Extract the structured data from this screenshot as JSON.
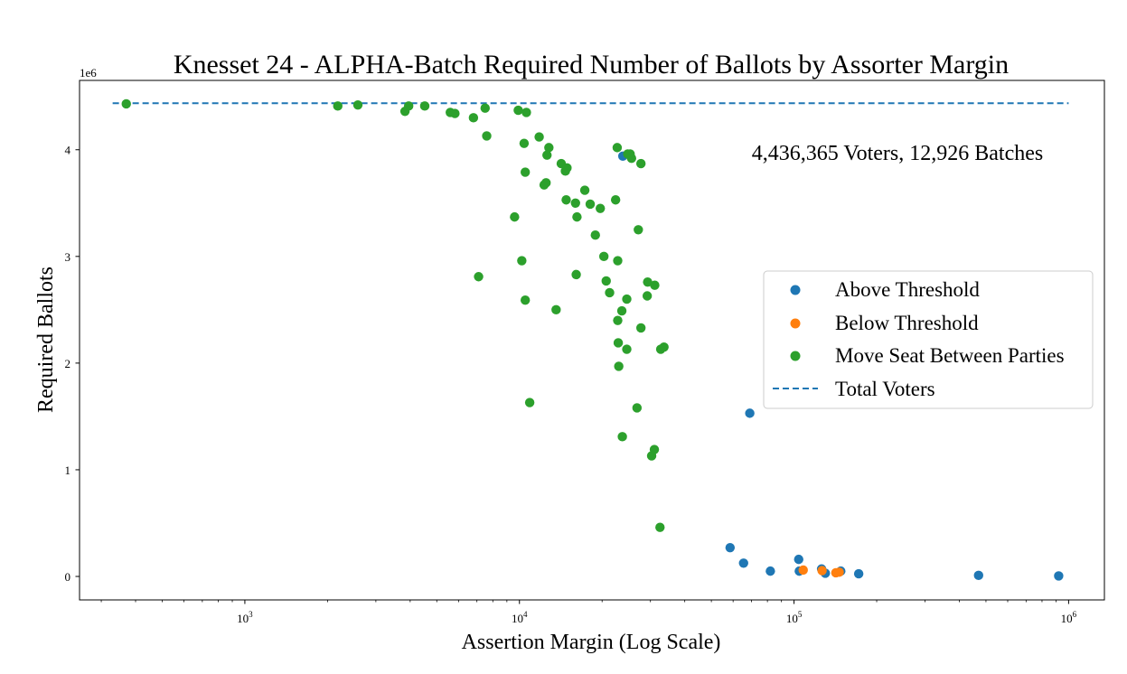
{
  "chart_data": {
    "type": "scatter",
    "title": "Knesset 24 - ALPHA-Batch Required Number of Ballots by Assorter Margin",
    "xlabel": "Assertion Margin (Log Scale)",
    "ylabel": "Required Ballots",
    "x_scale": "log",
    "xlim": [
      250,
      1350000
    ],
    "ylim": [
      -220000,
      4650000
    ],
    "y_multiplier_label": "1e6",
    "x_ticks": [
      {
        "value": 1000,
        "base": "10",
        "exp": "3"
      },
      {
        "value": 10000,
        "base": "10",
        "exp": "4"
      },
      {
        "value": 100000,
        "base": "10",
        "exp": "5"
      },
      {
        "value": 1000000,
        "base": "10",
        "exp": "6"
      }
    ],
    "y_ticks": [
      {
        "value": 0,
        "label": "0"
      },
      {
        "value": 1000000,
        "label": "1"
      },
      {
        "value": 2000000,
        "label": "2"
      },
      {
        "value": 3000000,
        "label": "3"
      },
      {
        "value": 4000000,
        "label": "4"
      }
    ],
    "annotation": "4,436,365 Voters, 12,926 Batches",
    "grid": false,
    "legend_position": "center-right",
    "total_voters": 4436365,
    "series": [
      {
        "name": "Above Threshold",
        "color": "#1f77b4",
        "points": [
          [
            23800,
            3940000
          ],
          [
            69000,
            1530000
          ],
          [
            58500,
            270000
          ],
          [
            65500,
            125000
          ],
          [
            82000,
            50000
          ],
          [
            104000,
            160000
          ],
          [
            104500,
            50000
          ],
          [
            126000,
            70000
          ],
          [
            130000,
            30000
          ],
          [
            148000,
            50000
          ],
          [
            172000,
            25000
          ],
          [
            470000,
            10000
          ],
          [
            920000,
            5000
          ]
        ]
      },
      {
        "name": "Below Threshold",
        "color": "#ff7f0e",
        "points": [
          [
            108000,
            60000
          ],
          [
            126500,
            55000
          ],
          [
            142000,
            35000
          ],
          [
            146000,
            40000
          ]
        ]
      },
      {
        "name": "Move Seat Between Parties",
        "color": "#2ca02c",
        "points": [
          [
            370,
            4430000
          ],
          [
            2180,
            4410000
          ],
          [
            2580,
            4420000
          ],
          [
            3830,
            4360000
          ],
          [
            3950,
            4410000
          ],
          [
            4520,
            4410000
          ],
          [
            5600,
            4350000
          ],
          [
            5820,
            4340000
          ],
          [
            6800,
            4300000
          ],
          [
            7500,
            4390000
          ],
          [
            7600,
            4130000
          ],
          [
            9900,
            4370000
          ],
          [
            10600,
            4350000
          ],
          [
            10400,
            4060000
          ],
          [
            10500,
            3790000
          ],
          [
            11800,
            4120000
          ],
          [
            12800,
            4020000
          ],
          [
            12600,
            3950000
          ],
          [
            14200,
            3870000
          ],
          [
            14700,
            3800000
          ],
          [
            14900,
            3830000
          ],
          [
            12300,
            3670000
          ],
          [
            12500,
            3690000
          ],
          [
            14800,
            3530000
          ],
          [
            16000,
            3500000
          ],
          [
            9600,
            3370000
          ],
          [
            16200,
            3370000
          ],
          [
            17300,
            3620000
          ],
          [
            18100,
            3490000
          ],
          [
            19700,
            3450000
          ],
          [
            22700,
            4020000
          ],
          [
            24800,
            3960000
          ],
          [
            25300,
            3960000
          ],
          [
            25600,
            3920000
          ],
          [
            27700,
            3870000
          ],
          [
            22400,
            3530000
          ],
          [
            27100,
            3250000
          ],
          [
            18900,
            3200000
          ],
          [
            10200,
            2960000
          ],
          [
            7100,
            2810000
          ],
          [
            20300,
            3000000
          ],
          [
            22800,
            2960000
          ],
          [
            20700,
            2770000
          ],
          [
            21300,
            2660000
          ],
          [
            16100,
            2830000
          ],
          [
            29300,
            2760000
          ],
          [
            31100,
            2730000
          ],
          [
            29200,
            2630000
          ],
          [
            24600,
            2600000
          ],
          [
            10500,
            2590000
          ],
          [
            13600,
            2500000
          ],
          [
            23600,
            2490000
          ],
          [
            22800,
            2400000
          ],
          [
            27700,
            2330000
          ],
          [
            22900,
            2190000
          ],
          [
            24600,
            2130000
          ],
          [
            32700,
            2130000
          ],
          [
            33600,
            2150000
          ],
          [
            23000,
            1970000
          ],
          [
            10900,
            1630000
          ],
          [
            26800,
            1580000
          ],
          [
            23700,
            1310000
          ],
          [
            31000,
            1190000
          ],
          [
            30300,
            1130000
          ],
          [
            32500,
            460000
          ]
        ]
      }
    ],
    "legend": {
      "above": "Above Threshold",
      "below": "Below Threshold",
      "move": "Move Seat Between Parties",
      "total": "Total Voters"
    }
  }
}
